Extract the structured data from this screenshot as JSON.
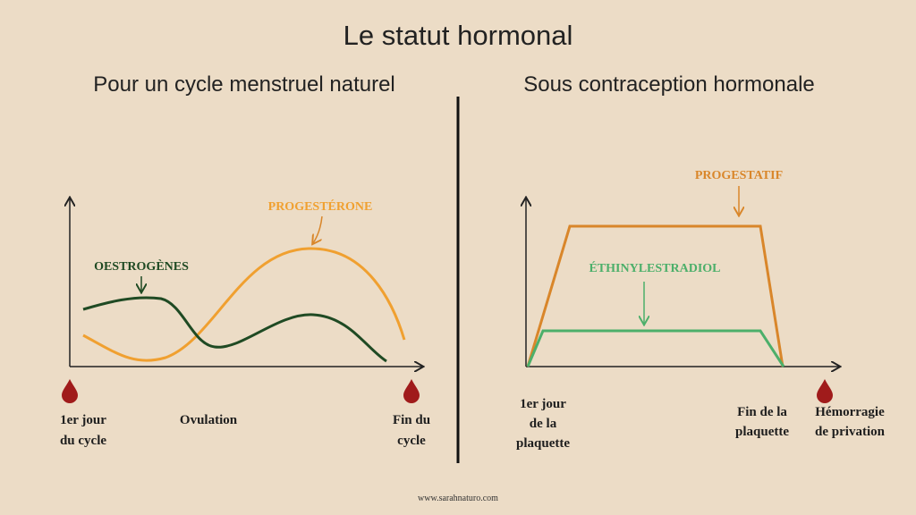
{
  "title": "Le statut hormonal",
  "footer": "www.sarahnaturo.com",
  "left": {
    "heading": "Pour un cycle menstruel naturel",
    "curve_labels": [
      "PROGESTÉRONE",
      "OESTROGÈNES"
    ],
    "x_labels": [
      [
        "1er jour",
        "du cycle"
      ],
      [
        "Ovulation"
      ],
      [
        "Fin du",
        "cycle"
      ]
    ]
  },
  "right": {
    "heading": "Sous contraception hormonale",
    "curve_labels": [
      "PROGESTATIF",
      "ÉTHINYLESTRADIOL"
    ],
    "x_labels": [
      [
        "1er jour",
        "de la",
        "plaquette"
      ],
      [
        "Fin de la",
        "plaquette"
      ],
      [
        "Hémorragie",
        "de privation"
      ]
    ]
  }
}
